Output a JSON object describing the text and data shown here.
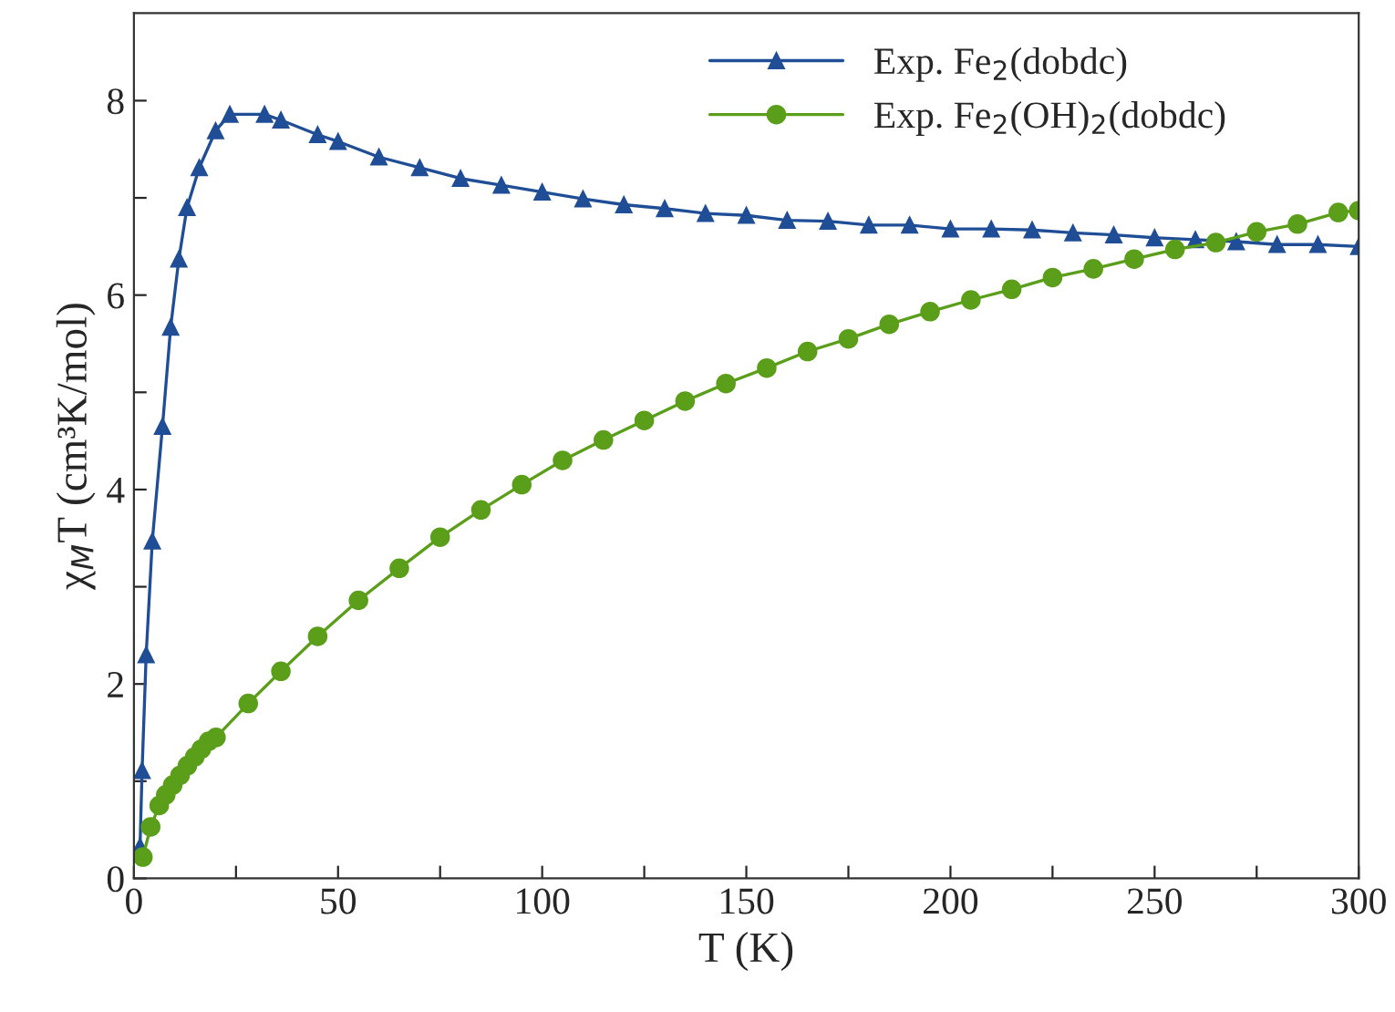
{
  "chart_data": {
    "type": "line",
    "xlabel": "T (K)",
    "ylabel": "χ$_{M}$T (cm³K/mol)",
    "xlim": [
      0,
      300
    ],
    "ylim": [
      0,
      8.9
    ],
    "xticks": [
      0,
      {
        "value": 25,
        "label": null
      },
      50,
      {
        "value": 75,
        "label": null
      },
      100,
      {
        "value": 125,
        "label": null
      },
      150,
      {
        "value": 175,
        "label": null
      },
      200,
      {
        "value": 225,
        "label": null
      },
      250,
      {
        "value": 275,
        "label": null
      },
      300
    ],
    "yticks": [
      0,
      {
        "value": 1,
        "label": null
      },
      2,
      {
        "value": 3,
        "label": null
      },
      4,
      {
        "value": 5,
        "label": null
      },
      6,
      {
        "value": 7,
        "label": null
      },
      8
    ],
    "grid": false,
    "legend": "top right",
    "line_style": "solid",
    "series": [
      {
        "name": "Exp. Fe$_{2}$(dobdc)",
        "color": "#1f4e96",
        "marker": "triangle",
        "x": [
          1.5,
          2,
          3,
          4.5,
          7,
          9,
          11,
          13,
          16,
          20,
          23.5,
          32,
          36,
          45,
          50,
          60,
          70,
          80,
          90,
          100,
          110,
          120,
          130,
          140,
          150,
          160,
          170,
          180,
          190,
          200,
          210,
          220,
          230,
          240,
          250,
          260,
          270,
          280,
          290,
          300
        ],
        "values": [
          0.33,
          1.11,
          2.3,
          3.47,
          4.65,
          5.67,
          6.37,
          6.9,
          7.31,
          7.69,
          7.86,
          7.86,
          7.8,
          7.65,
          7.58,
          7.42,
          7.31,
          7.2,
          7.13,
          7.06,
          6.99,
          6.93,
          6.89,
          6.84,
          6.82,
          6.77,
          6.76,
          6.72,
          6.72,
          6.68,
          6.68,
          6.67,
          6.64,
          6.62,
          6.59,
          6.57,
          6.55,
          6.52,
          6.52,
          6.5
        ]
      },
      {
        "name": "Exp. Fe$_{2}$(OH)$_{2}$(dobdc)",
        "color": "#5a9e1a",
        "marker": "circle",
        "x": [
          2.2,
          4.1,
          6.2,
          7.8,
          9.5,
          11.3,
          13.1,
          14.9,
          16.5,
          18.3,
          20.1,
          28,
          36,
          45,
          55,
          65,
          75,
          85,
          95,
          105,
          115,
          125,
          135,
          145,
          155,
          165,
          175,
          185,
          195,
          205,
          215,
          225,
          235,
          245,
          255,
          265,
          275,
          285,
          295,
          300
        ],
        "values": [
          0.22,
          0.53,
          0.75,
          0.86,
          0.96,
          1.06,
          1.16,
          1.25,
          1.33,
          1.41,
          1.45,
          1.8,
          2.13,
          2.49,
          2.86,
          3.19,
          3.51,
          3.79,
          4.05,
          4.3,
          4.51,
          4.71,
          4.91,
          5.09,
          5.25,
          5.42,
          5.55,
          5.7,
          5.83,
          5.95,
          6.06,
          6.18,
          6.27,
          6.37,
          6.47,
          6.54,
          6.65,
          6.73,
          6.85,
          6.87
        ]
      }
    ]
  }
}
